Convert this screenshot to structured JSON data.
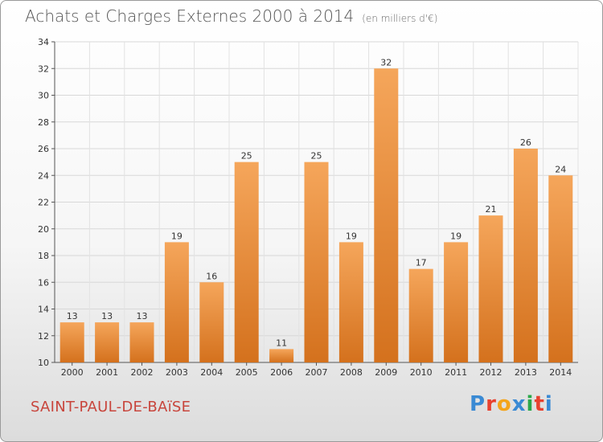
{
  "header": {
    "title": "Achats et Charges Externes 2000 à 2014",
    "unit": "(en milliers d'€)"
  },
  "footer": {
    "town": "SAINT-PAUL-DE-BAïSE",
    "logo": "Proxiti",
    "logo_colors": [
      "#3a8ad4",
      "#e8412f",
      "#f4a51c",
      "#3a8ad4",
      "#2ba84a",
      "#e8412f",
      "#3a8ad4"
    ]
  },
  "chart_data": {
    "type": "bar",
    "title": "Achats et Charges Externes 2000 à 2014",
    "subtitle": "(en milliers d'€)",
    "xlabel": "",
    "ylabel": "",
    "categories": [
      "2000",
      "2001",
      "2002",
      "2003",
      "2004",
      "2005",
      "2006",
      "2007",
      "2008",
      "2009",
      "2010",
      "2011",
      "2012",
      "2013",
      "2014"
    ],
    "values": [
      13,
      13,
      13,
      19,
      16,
      25,
      11,
      25,
      19,
      32,
      17,
      19,
      21,
      26,
      24
    ],
    "ylim": [
      10,
      34
    ],
    "yticks": [
      10,
      12,
      14,
      16,
      18,
      20,
      22,
      24,
      26,
      28,
      30,
      32,
      34
    ],
    "grid": true,
    "bar_color_top": "#f5a65b",
    "bar_color_bottom": "#d4711d"
  }
}
